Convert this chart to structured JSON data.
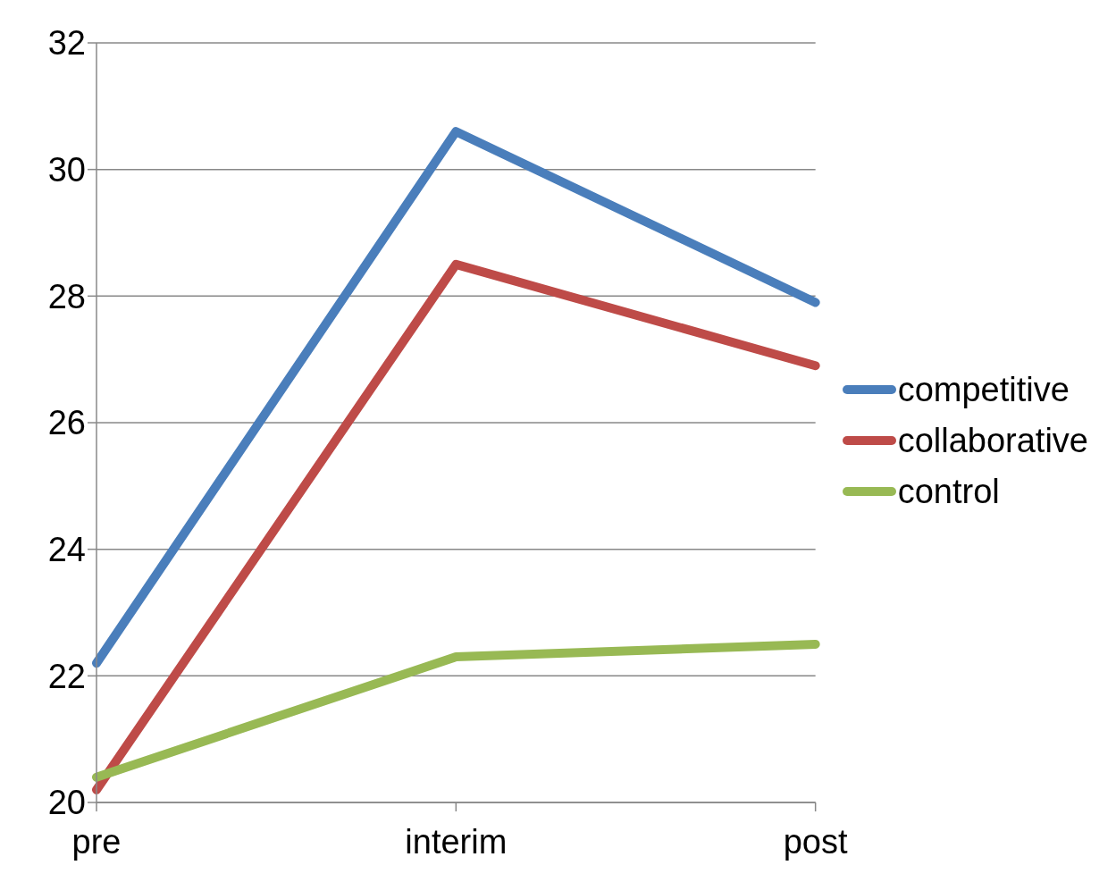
{
  "chart_data": {
    "type": "line",
    "categories": [
      "pre",
      "interim",
      "post"
    ],
    "series": [
      {
        "name": "competitive",
        "color": "#4a7ebb",
        "values": [
          22.2,
          30.6,
          27.9
        ]
      },
      {
        "name": "collaborative",
        "color": "#be4b48",
        "values": [
          20.2,
          28.5,
          26.9
        ]
      },
      {
        "name": "control",
        "color": "#98b954",
        "values": [
          20.4,
          22.3,
          22.5
        ]
      }
    ],
    "ylim": [
      20,
      32
    ],
    "yticks": [
      20,
      22,
      24,
      26,
      28,
      30,
      32
    ],
    "grid": "y",
    "legend": "right",
    "marker": "none",
    "line_style": "solid"
  }
}
